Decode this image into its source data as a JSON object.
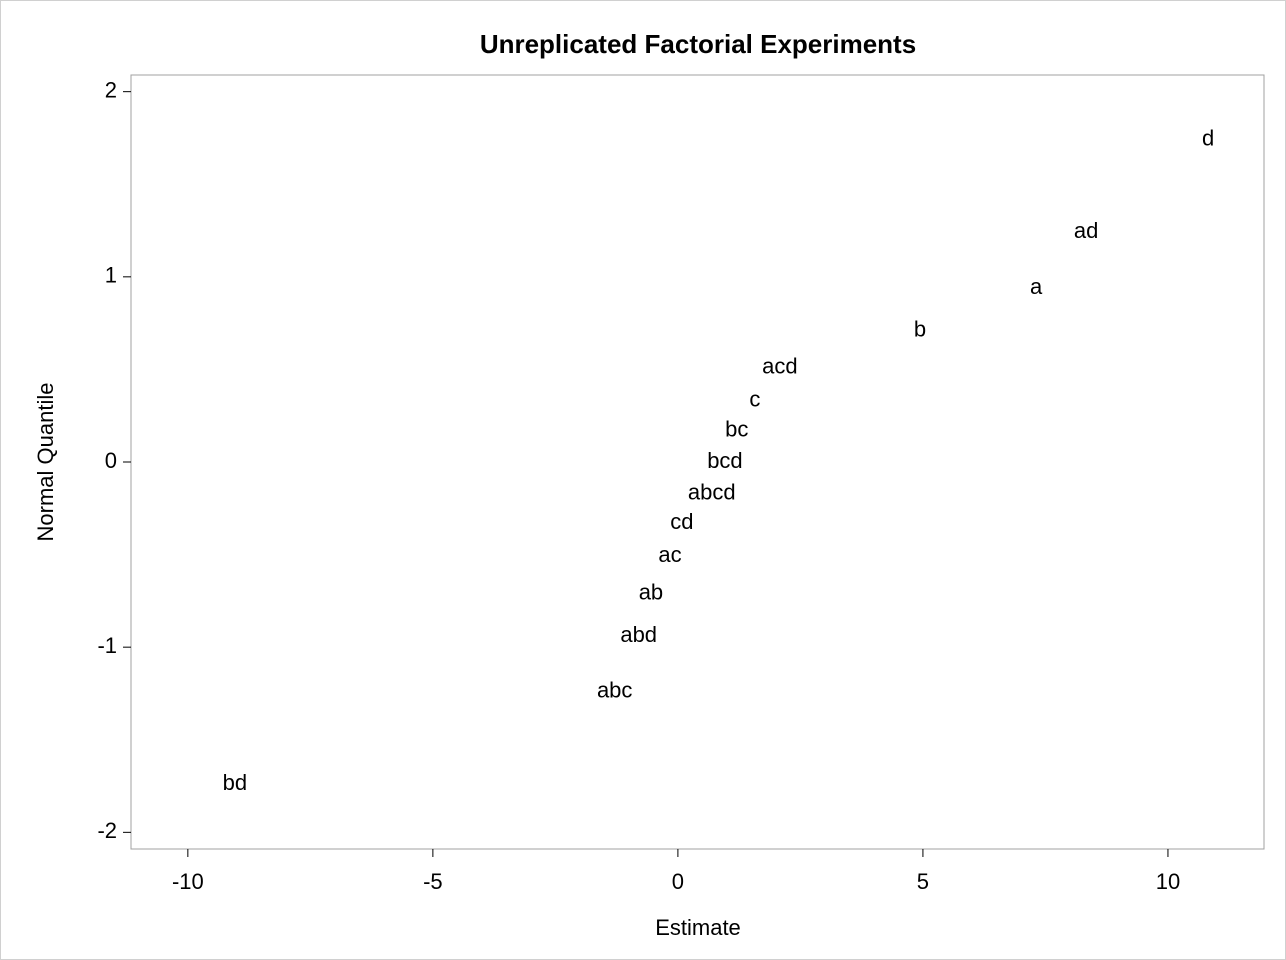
{
  "chart_data": {
    "type": "scatter",
    "title": "Unreplicated Factorial Experiments",
    "xlabel": "Estimate",
    "ylabel": "Normal Quantile",
    "labels": [
      "d",
      "ad",
      "a",
      "b",
      "acd",
      "c",
      "bc",
      "bcd",
      "abcd",
      "cd",
      "ac",
      "ab",
      "abd",
      "abc",
      "bd"
    ],
    "x": [
      10.82,
      8.33,
      7.31,
      4.94,
      2.08,
      1.57,
      1.2,
      0.96,
      0.69,
      0.08,
      -0.16,
      -0.55,
      -0.8,
      -1.29,
      -9.04
    ],
    "values": [
      1.74,
      1.24,
      0.94,
      0.71,
      0.51,
      0.33,
      0.17,
      0,
      -0.17,
      -0.33,
      -0.51,
      -0.71,
      -0.94,
      -1.24,
      -1.74
    ],
    "color": "#000000",
    "xlim": [
      -11.16,
      11.96
    ],
    "ylim": [
      -2.09,
      2.09
    ],
    "xticks": [
      -10,
      -5,
      0,
      5,
      10
    ],
    "yticks": [
      -2,
      -1,
      0,
      1,
      2
    ]
  }
}
